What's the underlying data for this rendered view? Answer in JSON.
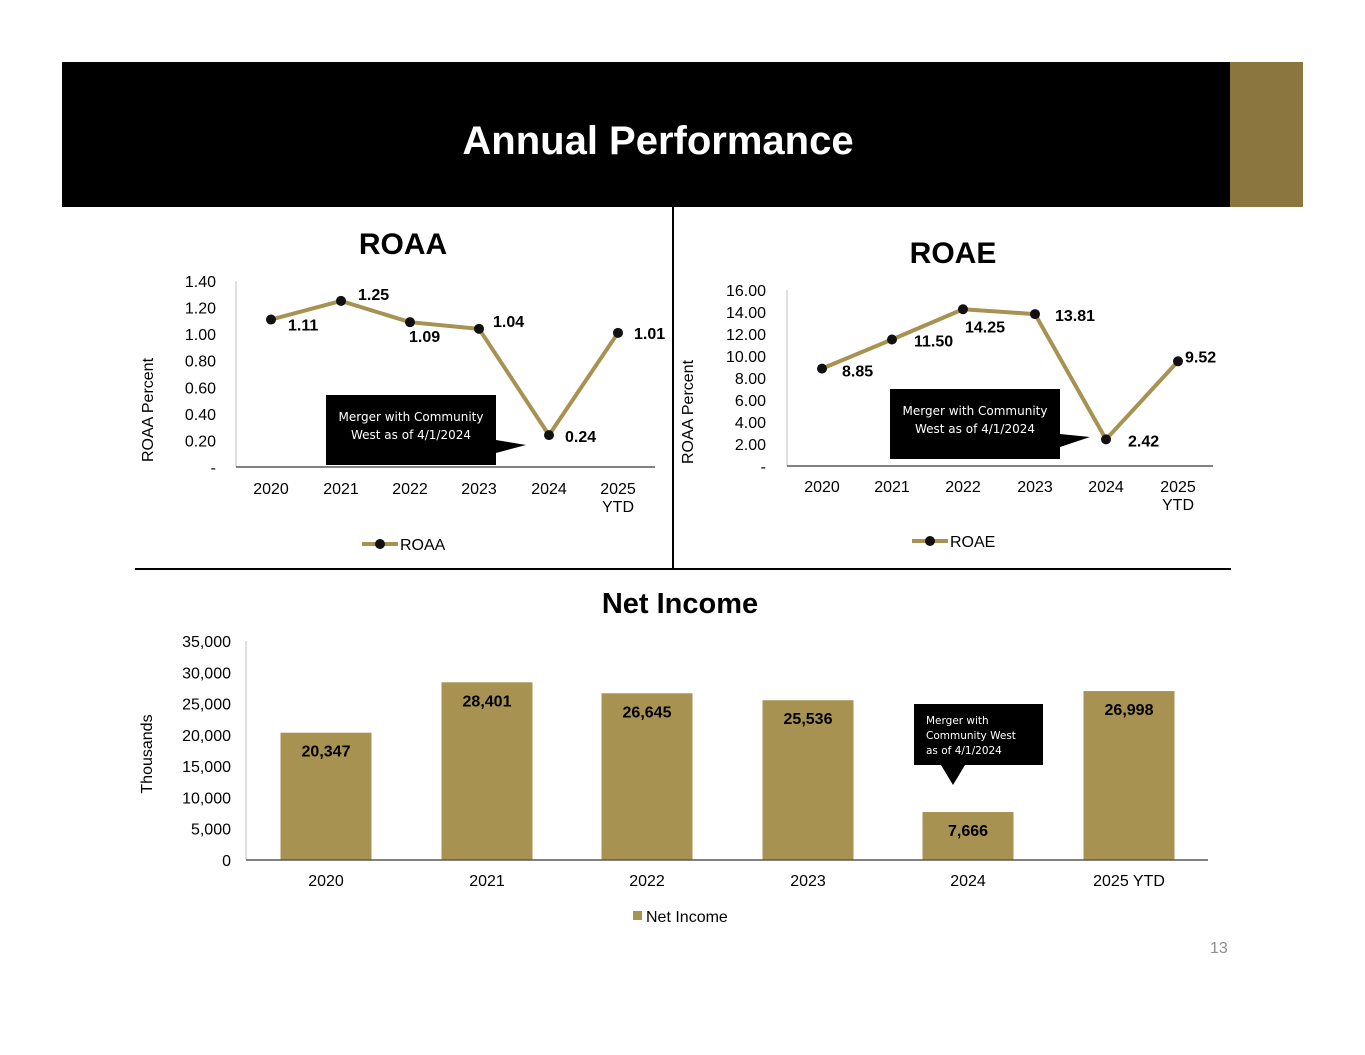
{
  "slide": {
    "title": "Annual Performance",
    "page_number": "13",
    "colors": {
      "header": "#000000",
      "accent": "#8a763e",
      "series": "#a89252"
    }
  },
  "chart_data": [
    {
      "id": "roaa",
      "type": "line",
      "title": "ROAA",
      "ylabel": "ROAA Percent",
      "categories": [
        "2020",
        "2021",
        "2022",
        "2023",
        "2024",
        "2025 YTD"
      ],
      "yticks": [
        "-",
        "0.20",
        "0.40",
        "0.60",
        "0.80",
        "1.00",
        "1.20",
        "1.40"
      ],
      "ylim": [
        0,
        1.4
      ],
      "series": [
        {
          "name": "ROAA",
          "values": [
            1.11,
            1.25,
            1.09,
            1.04,
            0.24,
            1.01
          ],
          "labels": [
            "1.11",
            "1.25",
            "1.09",
            "1.04",
            "0.24",
            "1.01"
          ]
        }
      ],
      "legend": "bottom",
      "annotation": [
        "Merger with Community",
        "West as of 4/1/2024"
      ]
    },
    {
      "id": "roae",
      "type": "line",
      "title": "ROAE",
      "ylabel": "ROAA Percent",
      "categories": [
        "2020",
        "2021",
        "2022",
        "2023",
        "2024",
        "2025 YTD"
      ],
      "yticks": [
        "-",
        "2.00",
        "4.00",
        "6.00",
        "8.00",
        "10.00",
        "12.00",
        "14.00",
        "16.00"
      ],
      "ylim": [
        0,
        16
      ],
      "series": [
        {
          "name": "ROAE",
          "values": [
            8.85,
            11.5,
            14.25,
            13.81,
            2.42,
            9.52
          ],
          "labels": [
            "8.85",
            "11.50",
            "14.25",
            "13.81",
            "2.42",
            "9.52"
          ]
        }
      ],
      "legend": "bottom",
      "annotation": [
        "Merger with Community",
        "West as of 4/1/2024"
      ]
    },
    {
      "id": "net_income",
      "type": "bar",
      "title": "Net Income",
      "ylabel": "Thousands",
      "categories": [
        "2020",
        "2021",
        "2022",
        "2023",
        "2024",
        "2025 YTD"
      ],
      "yticks": [
        "0",
        "5,000",
        "10,000",
        "15,000",
        "20,000",
        "25,000",
        "30,000",
        "35,000"
      ],
      "ylim": [
        0,
        35000
      ],
      "series": [
        {
          "name": "Net Income",
          "values": [
            20347,
            28401,
            26645,
            25536,
            7666,
            26998
          ],
          "labels": [
            "20,347",
            "28,401",
            "26,645",
            "25,536",
            "7,666",
            "26,998"
          ]
        }
      ],
      "legend": "bottom",
      "annotation": [
        "Merger with",
        "Community West",
        "as of 4/1/2024"
      ]
    }
  ]
}
